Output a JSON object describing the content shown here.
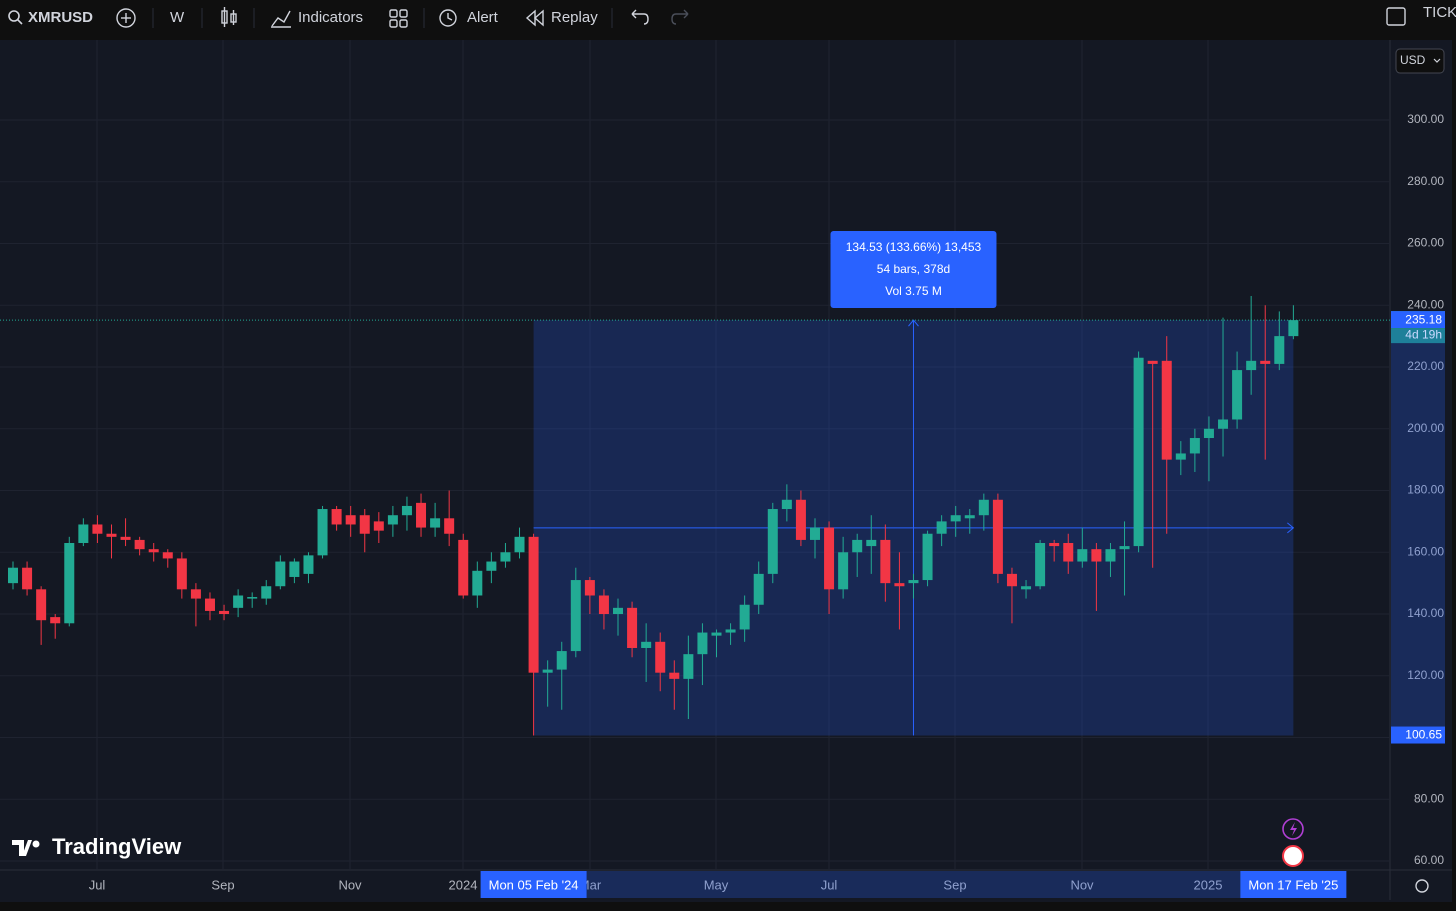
{
  "toolbar": {
    "symbol": "XMRUSD",
    "interval": "W",
    "indicators": "Indicators",
    "alert": "Alert",
    "replay": "Replay",
    "ticker": "TICK"
  },
  "watermark": "TradingView",
  "chart_data": {
    "type": "candlestick",
    "currency": "USD",
    "up_color": "#22ab94",
    "down_color": "#f23645",
    "grid": true,
    "ylim": [
      57.1,
      325.9
    ],
    "yticks": [
      {
        "value": 60,
        "label": "60.00"
      },
      {
        "value": 80,
        "label": "80.00"
      },
      {
        "value": 100,
        "label": "100.00"
      },
      {
        "value": 120,
        "label": "120.00"
      },
      {
        "value": 140,
        "label": "140.00"
      },
      {
        "value": 160,
        "label": "160.00"
      },
      {
        "value": 180,
        "label": "180.00"
      },
      {
        "value": 200,
        "label": "200.00"
      },
      {
        "value": 220,
        "label": "220.00"
      },
      {
        "value": 240,
        "label": "240.00"
      },
      {
        "value": 260,
        "label": "260.00"
      },
      {
        "value": 280,
        "label": "280.00"
      },
      {
        "value": 300,
        "label": "300.00"
      }
    ],
    "xticks": [
      "Jul",
      "Sep",
      "Nov",
      "2024",
      "Mar",
      "May",
      "Jul",
      "Sep",
      "Nov",
      "2025"
    ],
    "open": [
      150,
      155,
      148,
      139,
      137,
      163,
      169,
      166,
      165,
      164,
      161,
      160,
      158,
      148,
      145,
      141,
      142,
      145,
      145,
      149,
      152,
      153,
      159,
      174,
      172,
      172,
      170,
      169,
      172,
      176,
      168,
      171,
      164,
      146,
      154,
      157,
      160,
      165,
      121,
      122,
      128,
      151,
      146,
      140,
      142,
      129,
      131,
      121,
      119,
      127,
      133,
      134,
      135,
      143,
      153,
      174,
      177,
      164,
      168,
      148,
      160,
      162,
      164,
      150,
      150,
      151,
      166,
      170,
      171,
      172,
      177,
      153,
      148,
      149,
      163,
      163,
      157,
      161,
      157,
      161,
      162,
      222,
      222,
      190,
      192,
      197,
      200,
      203,
      219,
      222,
      221,
      230
    ],
    "high": [
      157,
      157,
      149,
      140,
      165,
      171,
      172,
      169,
      171,
      165,
      163,
      161,
      160,
      150,
      147,
      143,
      148,
      147,
      151,
      159,
      158,
      160,
      175,
      175,
      175,
      174,
      173,
      175,
      178,
      179,
      176,
      180,
      166,
      157,
      160,
      163,
      168,
      166,
      125,
      131,
      155,
      152,
      148,
      145,
      144,
      137,
      134,
      125,
      133,
      137,
      135,
      137,
      146,
      157,
      176,
      182,
      180,
      171,
      170,
      165,
      166,
      172,
      169,
      160,
      153,
      167,
      172,
      175,
      174,
      179,
      179,
      155,
      151,
      164,
      164,
      166,
      168,
      163,
      163,
      170,
      225,
      222,
      230,
      196,
      200,
      204,
      236,
      225,
      243,
      240,
      238,
      240
    ],
    "low": [
      148,
      146,
      130,
      132,
      136,
      162,
      163,
      158,
      162,
      159,
      157,
      155,
      145,
      136,
      138,
      138,
      139,
      142,
      143,
      148,
      150,
      150,
      158,
      167,
      165,
      160,
      163,
      165,
      167,
      165,
      165,
      162,
      145,
      142,
      150,
      155,
      158,
      100.65,
      110,
      109,
      126,
      140,
      135,
      133,
      126,
      118,
      115,
      109,
      106,
      117,
      126,
      130,
      131,
      140,
      150,
      170,
      162,
      158,
      140,
      145,
      152,
      153,
      144,
      135,
      145,
      149,
      162,
      165,
      166,
      167,
      150,
      137,
      145,
      148,
      157,
      153,
      155,
      141,
      152,
      146,
      160,
      155,
      166,
      185,
      186,
      183,
      191,
      200,
      211,
      190,
      219,
      229
    ],
    "close": [
      155,
      148,
      138,
      137,
      163,
      169,
      166,
      165,
      164,
      161,
      160,
      158,
      148,
      145,
      141,
      140,
      146,
      145.5,
      149,
      157,
      157,
      159,
      174,
      169,
      169,
      166,
      167,
      172,
      175,
      168,
      171,
      166,
      146,
      154,
      157,
      160,
      165,
      121,
      122,
      128,
      151,
      146,
      140,
      142,
      129,
      131,
      121,
      119,
      127,
      134,
      134,
      135,
      143,
      153,
      174,
      177,
      164,
      168,
      148,
      160,
      164,
      164,
      150,
      149,
      151,
      166,
      170,
      172,
      172,
      177,
      153,
      149,
      149,
      163,
      162,
      157,
      161,
      157,
      161,
      162,
      223,
      221,
      190,
      192,
      197,
      200,
      203,
      219,
      222,
      221,
      230,
      235.18
    ],
    "last_price": 235.18,
    "countdown": "4d 19h",
    "measure": {
      "high": 235.18,
      "low": 100.65,
      "start_label": "Mon 05 Feb '24",
      "end_label": "Mon 17 Feb '25",
      "line1": "134.53 (133.66%) 13,453",
      "line2": "54 bars, 378d",
      "line3": "Vol 3.75 M"
    }
  }
}
